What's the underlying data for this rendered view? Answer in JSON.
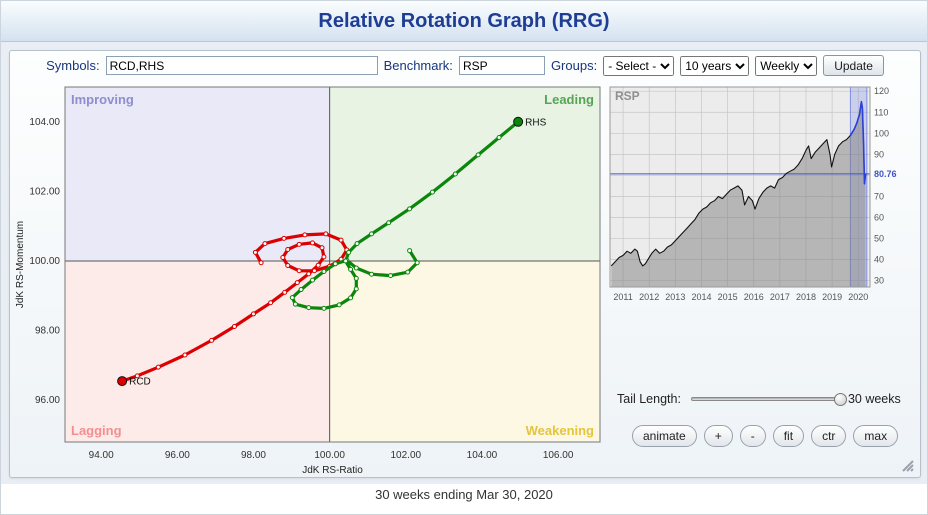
{
  "header": {
    "title": "Relative Rotation Graph (RRG)"
  },
  "toolbar": {
    "symbols_label": "Symbols:",
    "symbols_value": "RCD,RHS",
    "benchmark_label": "Benchmark:",
    "benchmark_value": "RSP",
    "groups_label": "Groups:",
    "groups_value": "- Select -",
    "period_value": "10 years",
    "interval_value": "Weekly",
    "update_label": "Update"
  },
  "tail": {
    "label": "Tail Length:",
    "value_label": "30 weeks"
  },
  "controls": [
    "animate",
    "+",
    "-",
    "fit",
    "ctr",
    "max"
  ],
  "footer": {
    "text": "30 weeks ending Mar 30, 2020"
  },
  "chart_data": [
    {
      "id": "rrg",
      "type": "scatter",
      "xlabel": "JdK RS-Ratio",
      "ylabel": "JdK RS-Momentum",
      "xlim": [
        93.05,
        107.1
      ],
      "ylim": [
        94.8,
        105.0
      ],
      "center": [
        100,
        100
      ],
      "xticks": [
        94,
        96,
        98,
        100,
        102,
        104,
        106
      ],
      "yticks": [
        96,
        98,
        100,
        102,
        104
      ],
      "quadrants": [
        {
          "name": "Improving",
          "label_color": "#8d8dd0",
          "bg": "#e9e9f7"
        },
        {
          "name": "Leading",
          "label_color": "#55a555",
          "bg": "#e8f3e4"
        },
        {
          "name": "Lagging",
          "label_color": "#f48f8f",
          "bg": "#fcebe9"
        },
        {
          "name": "Weakening",
          "label_color": "#e5c43f",
          "bg": "#fdf8e3"
        }
      ],
      "series": [
        {
          "name": "RCD",
          "color": "#dd0000",
          "points": [
            [
              98.2,
              99.95
            ],
            [
              98.05,
              100.25
            ],
            [
              98.3,
              100.5
            ],
            [
              98.8,
              100.65
            ],
            [
              99.35,
              100.75
            ],
            [
              99.9,
              100.78
            ],
            [
              100.3,
              100.6
            ],
            [
              100.45,
              100.32
            ],
            [
              100.3,
              100.05
            ],
            [
              100.0,
              99.85
            ],
            [
              99.6,
              99.72
            ],
            [
              99.2,
              99.72
            ],
            [
              98.9,
              99.87
            ],
            [
              98.77,
              100.1
            ],
            [
              98.9,
              100.33
            ],
            [
              99.2,
              100.48
            ],
            [
              99.55,
              100.52
            ],
            [
              99.8,
              100.38
            ],
            [
              99.85,
              100.12
            ],
            [
              99.7,
              99.88
            ],
            [
              99.45,
              99.63
            ],
            [
              99.15,
              99.38
            ],
            [
              98.82,
              99.1
            ],
            [
              98.45,
              98.8
            ],
            [
              98.0,
              98.48
            ],
            [
              97.5,
              98.12
            ],
            [
              96.9,
              97.72
            ],
            [
              96.2,
              97.3
            ],
            [
              95.5,
              96.95
            ],
            [
              94.95,
              96.7
            ],
            [
              94.55,
              96.55
            ]
          ]
        },
        {
          "name": "RHS",
          "color": "#0a870a",
          "points": [
            [
              102.1,
              100.3
            ],
            [
              102.3,
              99.95
            ],
            [
              102.05,
              99.68
            ],
            [
              101.6,
              99.58
            ],
            [
              101.1,
              99.62
            ],
            [
              100.7,
              99.8
            ],
            [
              100.45,
              100.02
            ],
            [
              100.15,
              99.92
            ],
            [
              99.85,
              99.7
            ],
            [
              99.55,
              99.45
            ],
            [
              99.25,
              99.18
            ],
            [
              99.02,
              98.95
            ],
            [
              99.1,
              98.76
            ],
            [
              99.45,
              98.66
            ],
            [
              99.85,
              98.64
            ],
            [
              100.25,
              98.74
            ],
            [
              100.55,
              98.94
            ],
            [
              100.7,
              99.2
            ],
            [
              100.7,
              99.5
            ],
            [
              100.55,
              99.76
            ],
            [
              100.42,
              100.0
            ],
            [
              100.5,
              100.25
            ],
            [
              100.72,
              100.5
            ],
            [
              101.1,
              100.78
            ],
            [
              101.55,
              101.1
            ],
            [
              102.1,
              101.5
            ],
            [
              102.7,
              101.98
            ],
            [
              103.3,
              102.5
            ],
            [
              103.9,
              103.05
            ],
            [
              104.45,
              103.55
            ],
            [
              104.95,
              104.0
            ]
          ]
        }
      ]
    },
    {
      "id": "benchmark",
      "type": "area",
      "title": "RSP",
      "xlim": [
        2010.5,
        2020.45
      ],
      "ylim": [
        27,
        122
      ],
      "xticks": [
        2011,
        2012,
        2013,
        2014,
        2015,
        2016,
        2017,
        2018,
        2019,
        2020
      ],
      "yticks": [
        30,
        40,
        50,
        60,
        70,
        80,
        90,
        100,
        110,
        120
      ],
      "hide_ytick_labels": [
        80
      ],
      "last_value": 80.76,
      "highlight": [
        2019.7,
        2020.33
      ],
      "colors": {
        "bg": "#ececec",
        "grid": "#c6c6c6",
        "area": "rgba(128,128,128,0.5)",
        "line": "#111111",
        "tail_line": "#2c3fd6",
        "hline": "#4053c8",
        "highlight": "rgba(100,120,230,0.25)",
        "highlight_edge": "rgba(90,110,220,0.7)"
      },
      "points": [
        [
          2010.55,
          37
        ],
        [
          2010.7,
          39
        ],
        [
          2010.85,
          41
        ],
        [
          2011.0,
          42
        ],
        [
          2011.15,
          44
        ],
        [
          2011.3,
          43
        ],
        [
          2011.45,
          45
        ],
        [
          2011.55,
          44
        ],
        [
          2011.65,
          39
        ],
        [
          2011.75,
          37
        ],
        [
          2011.85,
          38
        ],
        [
          2011.95,
          40
        ],
        [
          2012.1,
          43
        ],
        [
          2012.25,
          45
        ],
        [
          2012.4,
          43
        ],
        [
          2012.55,
          44
        ],
        [
          2012.7,
          46
        ],
        [
          2012.85,
          47
        ],
        [
          2013.0,
          49
        ],
        [
          2013.15,
          51
        ],
        [
          2013.3,
          53
        ],
        [
          2013.45,
          55
        ],
        [
          2013.6,
          57
        ],
        [
          2013.75,
          59
        ],
        [
          2013.9,
          62
        ],
        [
          2014.05,
          64
        ],
        [
          2014.2,
          65
        ],
        [
          2014.35,
          67
        ],
        [
          2014.5,
          68
        ],
        [
          2014.65,
          70
        ],
        [
          2014.8,
          69
        ],
        [
          2014.95,
          71
        ],
        [
          2015.1,
          73
        ],
        [
          2015.25,
          74
        ],
        [
          2015.4,
          75
        ],
        [
          2015.55,
          73
        ],
        [
          2015.65,
          66
        ],
        [
          2015.8,
          70
        ],
        [
          2015.95,
          68
        ],
        [
          2016.05,
          64
        ],
        [
          2016.2,
          69
        ],
        [
          2016.35,
          72
        ],
        [
          2016.5,
          74
        ],
        [
          2016.65,
          75
        ],
        [
          2016.8,
          74
        ],
        [
          2016.95,
          78
        ],
        [
          2017.1,
          79
        ],
        [
          2017.25,
          81
        ],
        [
          2017.4,
          82
        ],
        [
          2017.55,
          83
        ],
        [
          2017.7,
          85
        ],
        [
          2017.85,
          88
        ],
        [
          2018.0,
          92
        ],
        [
          2018.1,
          94
        ],
        [
          2018.2,
          88
        ],
        [
          2018.35,
          91
        ],
        [
          2018.5,
          93
        ],
        [
          2018.65,
          95
        ],
        [
          2018.8,
          97
        ],
        [
          2018.92,
          90
        ],
        [
          2018.98,
          84
        ],
        [
          2019.1,
          90
        ],
        [
          2019.25,
          94
        ],
        [
          2019.4,
          96
        ],
        [
          2019.55,
          97
        ],
        [
          2019.7,
          99
        ],
        [
          2019.85,
          102
        ],
        [
          2019.95,
          105
        ],
        [
          2020.05,
          109
        ],
        [
          2020.12,
          115
        ],
        [
          2020.16,
          112
        ],
        [
          2020.2,
          96
        ],
        [
          2020.24,
          76
        ],
        [
          2020.28,
          80.76
        ]
      ]
    }
  ]
}
